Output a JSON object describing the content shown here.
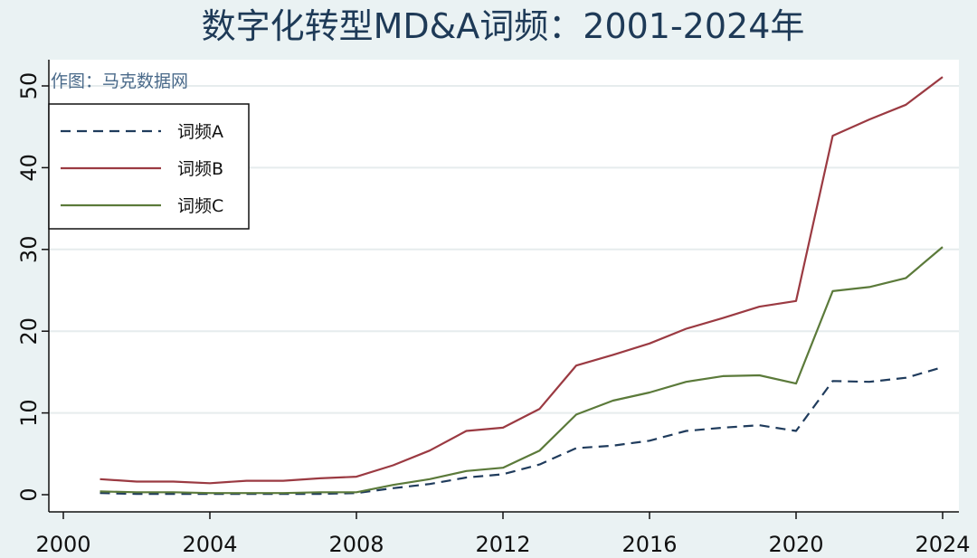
{
  "chart_data": {
    "type": "line",
    "title": "数字化转型MD&A词频：2001-2024年",
    "watermark": "作图：马克数据网",
    "x": [
      2001,
      2002,
      2003,
      2004,
      2005,
      2006,
      2007,
      2008,
      2009,
      2010,
      2011,
      2012,
      2013,
      2014,
      2015,
      2016,
      2017,
      2018,
      2019,
      2020,
      2021,
      2022,
      2023,
      2024
    ],
    "xlim": [
      2000,
      2024
    ],
    "ylim": [
      0,
      52
    ],
    "x_ticks": [
      2000,
      2004,
      2008,
      2012,
      2016,
      2020,
      2024
    ],
    "y_ticks": [
      0,
      10,
      20,
      30,
      40,
      50
    ],
    "xlabel": "",
    "ylabel": "",
    "grid": true,
    "legend_position": "top-left",
    "series": [
      {
        "name": "词频A",
        "color": "#1f3b5c",
        "style": "dashed",
        "values": [
          0.2,
          0.1,
          0.1,
          0.1,
          0.1,
          0.1,
          0.1,
          0.2,
          0.8,
          1.3,
          2.1,
          2.5,
          3.7,
          5.7,
          6.0,
          6.6,
          7.8,
          8.2,
          8.5,
          7.8,
          13.9,
          13.8,
          14.3,
          15.6
        ]
      },
      {
        "name": "词频B",
        "color": "#9b3a42",
        "style": "solid",
        "values": [
          1.9,
          1.6,
          1.6,
          1.4,
          1.7,
          1.7,
          2.0,
          2.2,
          3.6,
          5.4,
          7.8,
          8.2,
          10.5,
          15.8,
          17.1,
          18.5,
          20.3,
          21.6,
          23.0,
          23.7,
          43.9,
          45.9,
          47.7,
          51.1
        ]
      },
      {
        "name": "词频C",
        "color": "#5b7a3a",
        "style": "solid",
        "values": [
          0.4,
          0.3,
          0.3,
          0.2,
          0.2,
          0.2,
          0.3,
          0.3,
          1.2,
          1.9,
          2.9,
          3.3,
          5.4,
          9.8,
          11.5,
          12.5,
          13.8,
          14.5,
          14.6,
          13.6,
          24.9,
          25.4,
          26.5,
          30.3
        ]
      }
    ]
  }
}
